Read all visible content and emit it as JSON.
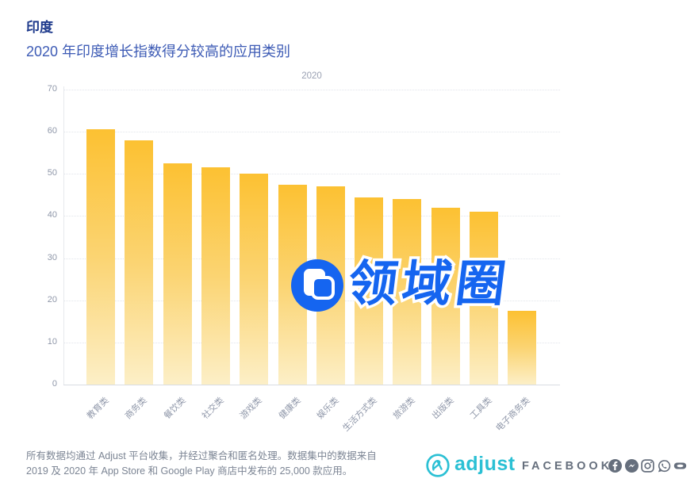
{
  "header": {
    "title": "印度",
    "subtitle": "2020 年印度增长指数得分较高的应用类别"
  },
  "chart_data": {
    "type": "bar",
    "title": "2020 年印度增长指数得分较高的应用类别",
    "legend": [
      "2020"
    ],
    "legend_position": "top-center",
    "categories": [
      "教育类",
      "商务类",
      "餐饮类",
      "社交类",
      "游戏类",
      "健康类",
      "娱乐类",
      "生活方式类",
      "旅游类",
      "出版类",
      "工具类",
      "电子商务类"
    ],
    "values": [
      60.5,
      58,
      52.5,
      51.5,
      50,
      47.5,
      47,
      44.5,
      44,
      42,
      41,
      17.5
    ],
    "xlabel": "",
    "ylabel": "",
    "ylim": [
      0,
      70
    ],
    "yticks": [
      0,
      10,
      20,
      30,
      40,
      50,
      60,
      70
    ],
    "grid": "horizontal-dotted",
    "bar_gradient": [
      "#FCC132",
      "#FBD472",
      "#FCEFC7"
    ]
  },
  "watermark": {
    "text": "领域圈",
    "logo": "overlapping-rounded-squares-icon",
    "color": "#1565F0"
  },
  "footer": {
    "disclaimer_line1": "所有数据均通过 Adjust 平台收集，并经过聚合和匿名处理。数据集中的数据来自",
    "disclaimer_line2": "2019 及 2020 年 App Store 和 Google Play 商店中发布的 25,000 款应用。",
    "adjust_logo_text": "adjust",
    "facebook_wordmark": "FACEBOOK",
    "social_icons": [
      "facebook-icon",
      "messenger-icon",
      "instagram-icon",
      "whatsapp-icon",
      "oculus-icon"
    ]
  },
  "colors": {
    "title_blue": "#1E3A8C",
    "subtitle_blue": "#3D5BB5",
    "axis_grey": "#8F97A9",
    "legend_grey": "#9AA1B3",
    "bar_top": "#FCC132",
    "bar_mid": "#FBD472",
    "bar_bottom": "#FCEFC7",
    "watermark_blue": "#1565F0",
    "adjust_teal": "#2BC0D4",
    "facebook_grey": "#666F7D",
    "footer_text_grey": "#7C8594"
  }
}
